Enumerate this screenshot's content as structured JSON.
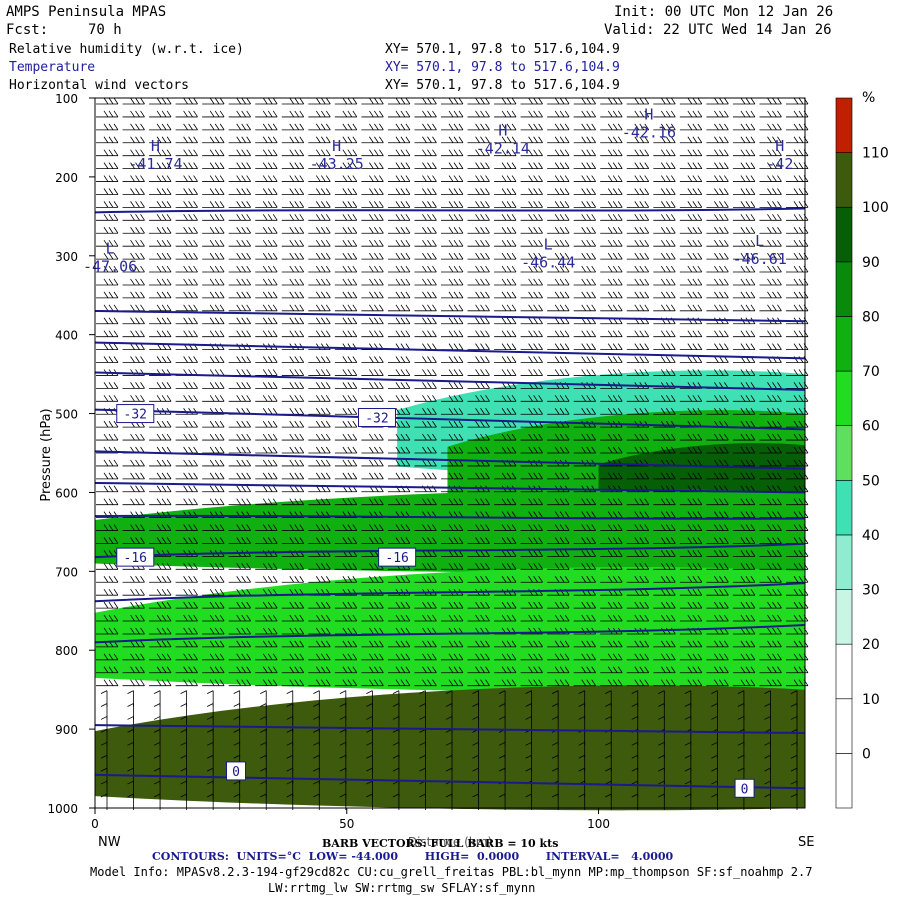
{
  "header": {
    "title": "AMPS Peninsula MPAS",
    "fcst_label": "Fcst:",
    "fcst_value": "70 h",
    "init": "Init: 00 UTC Mon 12 Jan 26",
    "valid": "Valid: 22 UTC Wed 14 Jan 26",
    "fields": [
      {
        "name": "Relative humidity (w.r.t. ice)",
        "xy": "XY= 570.1, 97.8 to 517.6,104.9",
        "color": "#000000"
      },
      {
        "name": "Temperature",
        "xy": "XY= 570.1, 97.8 to 517.6,104.9",
        "color": "#2020a0"
      },
      {
        "name": "Horizontal wind vectors",
        "xy": "XY= 570.1, 97.8 to 517.6,104.9",
        "color": "#000000"
      }
    ]
  },
  "footer": {
    "barb_line": "BARB VECTORS: FULL BARB = 10 kts",
    "contours": "CONTOURS:  UNITS=°C  LOW= -44.000       HIGH=  0.0000       INTERVAL=   4.0000",
    "model_info": "Model Info: MPASv8.2.3-194-gf29cd82c CU:cu_grell_freitas PBL:bl_mynn MP:mp_thompson SF:sf_noahmp 2.7",
    "model_info2": "LW:rrtmg_lw SW:rrtmg_sw SFLAY:sf_mynn"
  },
  "chart_data": {
    "type": "heatmap",
    "title": "Relative humidity (w.r.t. ice), Temperature, Horizontal wind vectors",
    "xlabel": "Distance (km)",
    "ylabel": "Pressure (hPa)",
    "xlim": [
      0,
      141
    ],
    "ylim": [
      1000,
      100
    ],
    "x_ticks": [
      0,
      50,
      100
    ],
    "y_ticks": [
      100,
      200,
      300,
      400,
      500,
      600,
      700,
      800,
      900,
      1000
    ],
    "x_end_labels": {
      "left": "NW",
      "right": "SE"
    },
    "colorbar": {
      "unit": "%",
      "levels": [
        0,
        10,
        20,
        30,
        40,
        50,
        60,
        70,
        80,
        90,
        100,
        110
      ],
      "colors": [
        "#ffffff",
        "#ffffff",
        "#ffffff",
        "#c8f5e4",
        "#90ecd0",
        "#3ee0b4",
        "#5ee05e",
        "#22dc22",
        "#10b010",
        "#0a8a0a",
        "#065e06",
        "#3e5a0c",
        "#c02000"
      ]
    },
    "rh_field_description": "moist layer 450-1000 hPa, dry above 350 hPa",
    "rh_bands": [
      {
        "p_top": 450,
        "p_bot": 580,
        "x0": 60,
        "x1": 141,
        "level": 40
      },
      {
        "p_top": 500,
        "p_bot": 620,
        "x0": 70,
        "x1": 141,
        "level": 70
      },
      {
        "p_top": 540,
        "p_bot": 610,
        "x0": 100,
        "x1": 141,
        "level": 90
      },
      {
        "p_top": 600,
        "p_bot": 700,
        "x0": 0,
        "x1": 141,
        "level": 70
      },
      {
        "p_top": 700,
        "p_bot": 850,
        "x0": 0,
        "x1": 141,
        "level": 60
      },
      {
        "p_top": 850,
        "p_bot": 1000,
        "x0": 0,
        "x1": 141,
        "level": 100
      }
    ],
    "temperature_contours": {
      "interval": 4,
      "low": -44,
      "high": 0,
      "labels": [
        {
          "value": "-32",
          "x": 8,
          "p": 500
        },
        {
          "value": "-32",
          "x": 56,
          "p": 505
        },
        {
          "value": "-16",
          "x": 8,
          "p": 682
        },
        {
          "value": "-16",
          "x": 60,
          "p": 682
        },
        {
          "value": "0",
          "x": 28,
          "p": 953
        },
        {
          "value": "0",
          "x": 129,
          "p": 975
        }
      ],
      "lines": [
        {
          "p_left": 245,
          "p_right": 240
        },
        {
          "p_left": 370,
          "p_right": 383
        },
        {
          "p_left": 410,
          "p_right": 430
        },
        {
          "p_left": 448,
          "p_right": 470
        },
        {
          "p_left": 495,
          "p_right": 520
        },
        {
          "p_left": 548,
          "p_right": 570
        },
        {
          "p_left": 588,
          "p_right": 600
        },
        {
          "p_left": 630,
          "p_right": 633
        },
        {
          "p_left": 682,
          "p_right": 665
        },
        {
          "p_left": 738,
          "p_right": 715
        },
        {
          "p_left": 790,
          "p_right": 768
        },
        {
          "p_left": 895,
          "p_right": 905
        },
        {
          "p_left": 958,
          "p_right": 975
        }
      ]
    },
    "extrema": [
      {
        "type": "H",
        "value": "-41.74",
        "x": 12,
        "p": 180
      },
      {
        "type": "H",
        "value": "-43.25",
        "x": 48,
        "p": 180
      },
      {
        "type": "H",
        "value": "-42.14",
        "x": 81,
        "p": 160
      },
      {
        "type": "H",
        "value": "-42.16",
        "x": 110,
        "p": 140
      },
      {
        "type": "H",
        "value": "-42",
        "x": 136,
        "p": 180
      },
      {
        "type": "L",
        "value": "-47.06",
        "x": 3,
        "p": 310
      },
      {
        "type": "L",
        "value": "-46.44",
        "x": 90,
        "p": 305
      },
      {
        "type": "L",
        "value": "-46.61",
        "x": 132,
        "p": 300
      }
    ],
    "barbs": {
      "columns": 27,
      "rows": 55,
      "description": "westerly barbs aloft, southwesterly near surface"
    }
  }
}
